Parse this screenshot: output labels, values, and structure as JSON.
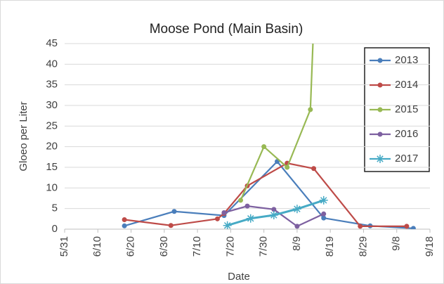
{
  "chart_data": {
    "type": "line",
    "title": "Moose Pond (Main Basin)",
    "x_label": "Date",
    "y_label": "Gloeo per Liter",
    "xlim": [
      "5/31",
      "9/18"
    ],
    "xticks": [
      "5/31",
      "6/10",
      "6/20",
      "6/30",
      "7/10",
      "7/20",
      "7/30",
      "8/9",
      "8/19",
      "8/29",
      "9/8",
      "9/18"
    ],
    "ylim": [
      0,
      45
    ],
    "yticks": [
      0,
      5,
      10,
      15,
      20,
      25,
      30,
      35,
      40,
      45
    ],
    "grid": true,
    "legend": "upper right",
    "series": [
      {
        "name": "2013",
        "color": "#4a7ebb",
        "marker": "circle",
        "x": [
          "6/18",
          "7/3",
          "7/18",
          "8/3",
          "8/17",
          "8/31",
          "9/13"
        ],
        "values": [
          0.8,
          4.3,
          3.3,
          16.4,
          2.7,
          0.8,
          0.2
        ]
      },
      {
        "name": "2014",
        "color": "#be4b48",
        "marker": "circle",
        "x": [
          "6/18",
          "7/2",
          "7/16",
          "7/18",
          "7/25",
          "8/6",
          "8/14",
          "8/28",
          "9/11"
        ],
        "values": [
          2.3,
          0.9,
          2.5,
          3.8,
          10.5,
          16,
          14.7,
          0.7,
          0.7
        ]
      },
      {
        "name": "2015",
        "color": "#98b954",
        "marker": "circle",
        "x": [
          "7/23",
          "7/30",
          "8/6",
          "8/13",
          "8/14"
        ],
        "values": [
          7,
          20,
          15,
          29,
          50
        ]
      },
      {
        "name": "2016",
        "color": "#7d60a0",
        "marker": "circle",
        "x": [
          "7/18",
          "7/25",
          "8/2",
          "8/9",
          "8/17"
        ],
        "values": [
          4,
          5.6,
          4.8,
          0.7,
          3.7
        ]
      },
      {
        "name": "2017",
        "color": "#46aac5",
        "marker": "star",
        "x": [
          "7/19",
          "7/26",
          "8/2",
          "8/9",
          "8/17"
        ],
        "values": [
          0.9,
          2.6,
          3.4,
          4.9,
          7
        ]
      }
    ]
  }
}
